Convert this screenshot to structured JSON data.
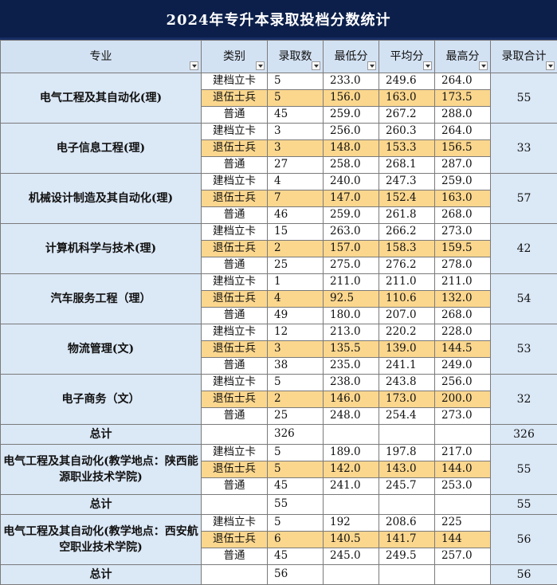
{
  "title": "2024年专升本录取投档分数统计",
  "headers": [
    "专业",
    "类别",
    "录取数",
    "最低分",
    "平均分",
    "最高分",
    "录取合计"
  ],
  "groups": [
    {
      "major": "电气工程及其自动化(理)",
      "total": "55",
      "rows": [
        {
          "cat": "建档立卡",
          "count": "5",
          "min": "233.0",
          "avg": "249.6",
          "max": "264.0"
        },
        {
          "cat": "退伍士兵",
          "count": "5",
          "min": "156.0",
          "avg": "163.0",
          "max": "173.5"
        },
        {
          "cat": "普通",
          "count": "45",
          "min": "259.0",
          "avg": "267.2",
          "max": "288.0"
        }
      ]
    },
    {
      "major": "电子信息工程(理)",
      "total": "33",
      "rows": [
        {
          "cat": "建档立卡",
          "count": "3",
          "min": "256.0",
          "avg": "260.3",
          "max": "264.0"
        },
        {
          "cat": "退伍士兵",
          "count": "3",
          "min": "148.0",
          "avg": "153.3",
          "max": "156.5"
        },
        {
          "cat": "普通",
          "count": "27",
          "min": "258.0",
          "avg": "268.1",
          "max": "287.0"
        }
      ]
    },
    {
      "major": "机械设计制造及其自动化(理)",
      "total": "57",
      "rows": [
        {
          "cat": "建档立卡",
          "count": "4",
          "min": "240.0",
          "avg": "247.3",
          "max": "259.0"
        },
        {
          "cat": "退伍士兵",
          "count": "7",
          "min": "147.0",
          "avg": "152.4",
          "max": "163.0"
        },
        {
          "cat": "普通",
          "count": "46",
          "min": "259.0",
          "avg": "261.8",
          "max": "268.0"
        }
      ]
    },
    {
      "major": "计算机科学与技术(理)",
      "total": "42",
      "rows": [
        {
          "cat": "建档立卡",
          "count": "15",
          "min": "263.0",
          "avg": "266.2",
          "max": "273.0"
        },
        {
          "cat": "退伍士兵",
          "count": "2",
          "min": "157.0",
          "avg": "158.3",
          "max": "159.5"
        },
        {
          "cat": "普通",
          "count": "25",
          "min": "275.0",
          "avg": "276.2",
          "max": "278.0"
        }
      ]
    },
    {
      "major": "汽车服务工程（理）",
      "total": "54",
      "rows": [
        {
          "cat": "建档立卡",
          "count": "1",
          "min": "211.0",
          "avg": "211.0",
          "max": "211.0"
        },
        {
          "cat": "退伍士兵",
          "count": "4",
          "min": "92.5",
          "avg": "110.6",
          "max": "132.0"
        },
        {
          "cat": "普通",
          "count": "49",
          "min": "180.0",
          "avg": "207.0",
          "max": "268.0"
        }
      ]
    },
    {
      "major": "物流管理(文)",
      "total": "53",
      "rows": [
        {
          "cat": "建档立卡",
          "count": "12",
          "min": "213.0",
          "avg": "220.2",
          "max": "228.0"
        },
        {
          "cat": "退伍士兵",
          "count": "3",
          "min": "135.5",
          "avg": "139.0",
          "max": "144.5"
        },
        {
          "cat": "普通",
          "count": "38",
          "min": "235.0",
          "avg": "241.1",
          "max": "249.0"
        }
      ]
    },
    {
      "major": "电子商务（文）",
      "total": "32",
      "rows": [
        {
          "cat": "建档立卡",
          "count": "5",
          "min": "238.0",
          "avg": "243.8",
          "max": "256.0"
        },
        {
          "cat": "退伍士兵",
          "count": "2",
          "min": "146.0",
          "avg": "173.0",
          "max": "200.0"
        },
        {
          "cat": "普通",
          "count": "25",
          "min": "248.0",
          "avg": "254.4",
          "max": "273.0"
        }
      ]
    },
    {
      "is_total": true,
      "label": "总计",
      "count": "326",
      "total": "326"
    },
    {
      "major": "电气工程及其自动化(教学地点：陕西能源职业技术学院)",
      "total": "55",
      "rows": [
        {
          "cat": "建档立卡",
          "count": "5",
          "min": "189.0",
          "avg": "197.8",
          "max": "217.0"
        },
        {
          "cat": "退伍士兵",
          "count": "5",
          "min": "142.0",
          "avg": "143.0",
          "max": "144.0"
        },
        {
          "cat": "普通",
          "count": "45",
          "min": "241.0",
          "avg": "245.7",
          "max": "253.0"
        }
      ]
    },
    {
      "is_total": true,
      "label": "总计",
      "count": "55",
      "total": "55"
    },
    {
      "major": "电气工程及其自动化(教学地点：西安航空职业技术学院)",
      "total": "56",
      "rows": [
        {
          "cat": "建档立卡",
          "count": "5",
          "min": "192",
          "avg": "208.6",
          "max": "225"
        },
        {
          "cat": "退伍士兵",
          "count": "6",
          "min": "140.5",
          "avg": "141.7",
          "max": "144"
        },
        {
          "cat": "普通",
          "count": "45",
          "min": "245.0",
          "avg": "249.5",
          "max": "257.0"
        }
      ]
    },
    {
      "is_total": true,
      "label": "总计",
      "count": "56",
      "total": "56"
    }
  ],
  "colors": {
    "title_bg": "#0b1f4a",
    "header_bg": "#d3e2f3",
    "highlight": "#fbd78e",
    "major_bg": "#dbe8f6"
  }
}
